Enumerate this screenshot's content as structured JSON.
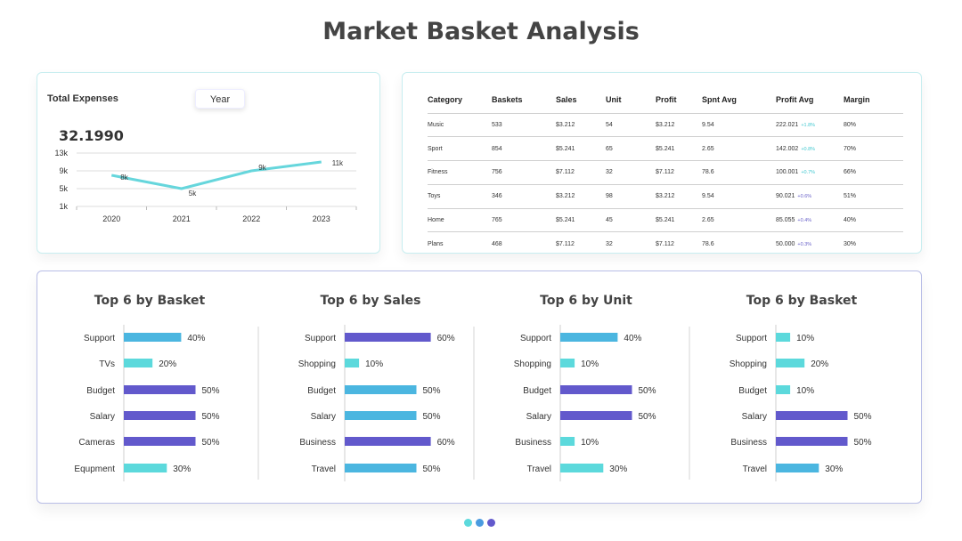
{
  "page_title": "Market Basket Analysis",
  "expenses": {
    "label": "Total Expenses",
    "filter": "Year",
    "value": "32.1990"
  },
  "table": {
    "headers": [
      "Category",
      "Baskets",
      "Sales",
      "Unit",
      "Profit",
      "Spnt Avg",
      "Profit Avg",
      "Margin"
    ],
    "rows": [
      {
        "category": "Music",
        "baskets": "533",
        "sales": "$3.212",
        "unit": "54",
        "profit": "$3.212",
        "spnt": "9.54",
        "pavg": "222.021",
        "chg": "+1.8%",
        "margin": "80%"
      },
      {
        "category": "Sport",
        "baskets": "854",
        "sales": "$5.241",
        "unit": "65",
        "profit": "$5.241",
        "spnt": "2.65",
        "pavg": "142.002",
        "chg": "+0.8%",
        "margin": "70%"
      },
      {
        "category": "Fitness",
        "baskets": "756",
        "sales": "$7.112",
        "unit": "32",
        "profit": "$7.112",
        "spnt": "78.6",
        "pavg": "100.001",
        "chg": "+0.7%",
        "margin": "66%"
      },
      {
        "category": "Toys",
        "baskets": "346",
        "sales": "$3.212",
        "unit": "98",
        "profit": "$3.212",
        "spnt": "9.54",
        "pavg": "90.021",
        "chg": "+0.6%",
        "margin": "51%"
      },
      {
        "category": "Home",
        "baskets": "765",
        "sales": "$5.241",
        "unit": "45",
        "profit": "$5.241",
        "spnt": "2.65",
        "pavg": "85.055",
        "chg": "+0.4%",
        "margin": "40%"
      },
      {
        "category": "Plans",
        "baskets": "468",
        "sales": "$7.112",
        "unit": "32",
        "profit": "$7.112",
        "spnt": "78.6",
        "pavg": "50.000",
        "chg": "+0.3%",
        "margin": "30%"
      }
    ],
    "change_colors": [
      "#43c8d0",
      "#43c8d0",
      "#43c8d0",
      "#6a63c9",
      "#6a63c9",
      "#6a63c9"
    ]
  },
  "colors": {
    "cyan": "#5cd9dc",
    "blue": "#4bb6e0",
    "purple": "#6259cc",
    "line": "#66d6dc"
  },
  "pager_dots": [
    "#5cd9dc",
    "#4a9be0",
    "#6259cc"
  ],
  "chart_data": [
    {
      "type": "line",
      "title": "",
      "x": [
        "2020",
        "2021",
        "2022",
        "2023"
      ],
      "values": [
        8,
        5,
        9,
        11
      ],
      "data_labels": [
        "8k",
        "5k",
        "9k",
        "11k"
      ],
      "yticks": [
        "1k",
        "5k",
        "9k",
        "13k"
      ],
      "ylim": [
        1,
        13
      ],
      "grid": true
    },
    {
      "type": "bar",
      "orientation": "horizontal",
      "title": "Top 6 by Basket",
      "categories": [
        "Support",
        "TVs",
        "Budget",
        "Salary",
        "Cameras",
        "Equpment"
      ],
      "values": [
        40,
        20,
        50,
        50,
        50,
        30
      ],
      "labels": [
        "40%",
        "20%",
        "50%",
        "50%",
        "50%",
        "30%"
      ],
      "colors": [
        "#4bb6e0",
        "#5cd9dc",
        "#6259cc",
        "#6259cc",
        "#6259cc",
        "#5cd9dc"
      ]
    },
    {
      "type": "bar",
      "orientation": "horizontal",
      "title": "Top 6 by Sales",
      "categories": [
        "Support",
        "Shopping",
        "Budget",
        "Salary",
        "Business",
        "Travel"
      ],
      "values": [
        60,
        10,
        50,
        50,
        60,
        50
      ],
      "labels": [
        "60%",
        "10%",
        "50%",
        "50%",
        "60%",
        "50%"
      ],
      "colors": [
        "#6259cc",
        "#5cd9dc",
        "#4bb6e0",
        "#4bb6e0",
        "#6259cc",
        "#4bb6e0"
      ]
    },
    {
      "type": "bar",
      "orientation": "horizontal",
      "title": "Top 6 by Unit",
      "categories": [
        "Support",
        "Shopping",
        "Budget",
        "Salary",
        "Business",
        "Travel"
      ],
      "values": [
        40,
        10,
        50,
        50,
        10,
        30
      ],
      "labels": [
        "40%",
        "10%",
        "50%",
        "50%",
        "10%",
        "30%"
      ],
      "colors": [
        "#4bb6e0",
        "#5cd9dc",
        "#6259cc",
        "#6259cc",
        "#5cd9dc",
        "#5cd9dc"
      ]
    },
    {
      "type": "bar",
      "orientation": "horizontal",
      "title": "Top 6 by Basket",
      "categories": [
        "Support",
        "Shopping",
        "Budget",
        "Salary",
        "Business",
        "Travel"
      ],
      "values": [
        10,
        20,
        10,
        50,
        50,
        30
      ],
      "labels": [
        "10%",
        "20%",
        "10%",
        "50%",
        "50%",
        "30%"
      ],
      "colors": [
        "#5cd9dc",
        "#5cd9dc",
        "#5cd9dc",
        "#6259cc",
        "#6259cc",
        "#4bb6e0"
      ]
    }
  ]
}
